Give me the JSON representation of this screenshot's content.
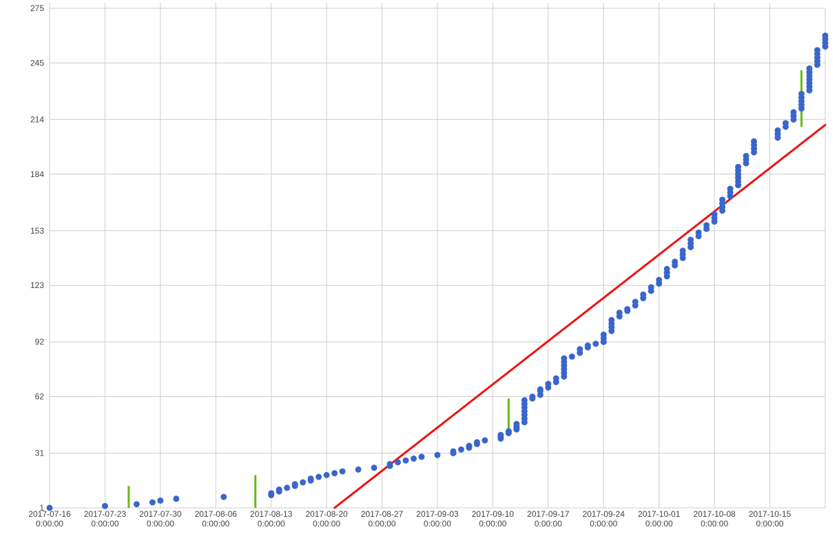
{
  "chart_data": {
    "type": "scatter",
    "title": "",
    "xlabel": "",
    "ylabel": "",
    "grid": true,
    "legend": "none",
    "xlim": [
      "2017-07-16",
      "2017-10-22"
    ],
    "ylim": [
      1,
      275
    ],
    "x_ticks": [
      {
        "date": "2017-07-16",
        "time": "0:00:00"
      },
      {
        "date": "2017-07-23",
        "time": "0:00:00"
      },
      {
        "date": "2017-07-30",
        "time": "0:00:00"
      },
      {
        "date": "2017-08-06",
        "time": "0:00:00"
      },
      {
        "date": "2017-08-13",
        "time": "0:00:00"
      },
      {
        "date": "2017-08-20",
        "time": "0:00:00"
      },
      {
        "date": "2017-08-27",
        "time": "0:00:00"
      },
      {
        "date": "2017-09-03",
        "time": "0:00:00"
      },
      {
        "date": "2017-09-10",
        "time": "0:00:00"
      },
      {
        "date": "2017-09-17",
        "time": "0:00:00"
      },
      {
        "date": "2017-09-24",
        "time": "0:00:00"
      },
      {
        "date": "2017-10-01",
        "time": "0:00:00"
      },
      {
        "date": "2017-10-08",
        "time": "0:00:00"
      },
      {
        "date": "2017-10-15",
        "time": "0:00:00"
      }
    ],
    "y_ticks": [
      1,
      31,
      62,
      92,
      123,
      153,
      184,
      214,
      245,
      275
    ],
    "colors": {
      "points": "#3a66cc",
      "trend": "#ee1111",
      "markers": "#66bb11",
      "grid": "#cccccc"
    },
    "series": [
      {
        "kind": "points",
        "points": [
          [
            "2017-07-16",
            1
          ],
          [
            "2017-07-23",
            2
          ],
          [
            "2017-07-27",
            3
          ],
          [
            "2017-07-29",
            4
          ],
          [
            "2017-07-30",
            5
          ],
          [
            "2017-08-01",
            6
          ],
          [
            "2017-08-07",
            7
          ],
          [
            "2017-08-13",
            8
          ],
          [
            "2017-08-13",
            9
          ],
          [
            "2017-08-14",
            10
          ],
          [
            "2017-08-14",
            11
          ],
          [
            "2017-08-15",
            12
          ],
          [
            "2017-08-16",
            13
          ],
          [
            "2017-08-16",
            14
          ],
          [
            "2017-08-17",
            15
          ],
          [
            "2017-08-18",
            16
          ],
          [
            "2017-08-18",
            17
          ],
          [
            "2017-08-19",
            18
          ],
          [
            "2017-08-20",
            19
          ],
          [
            "2017-08-21",
            20
          ],
          [
            "2017-08-22",
            21
          ],
          [
            "2017-08-24",
            22
          ],
          [
            "2017-08-26",
            23
          ],
          [
            "2017-08-28",
            24
          ],
          [
            "2017-08-28",
            25
          ],
          [
            "2017-08-29",
            26
          ],
          [
            "2017-08-30",
            27
          ],
          [
            "2017-08-31",
            28
          ],
          [
            "2017-09-01",
            29
          ],
          [
            "2017-09-03",
            30
          ],
          [
            "2017-09-05",
            31
          ],
          [
            "2017-09-05",
            32
          ],
          [
            "2017-09-06",
            33
          ],
          [
            "2017-09-07",
            34
          ],
          [
            "2017-09-07",
            35
          ],
          [
            "2017-09-08",
            36
          ],
          [
            "2017-09-08",
            37
          ],
          [
            "2017-09-09",
            38
          ],
          [
            "2017-09-11",
            39
          ],
          [
            "2017-09-11",
            40
          ],
          [
            "2017-09-11",
            41
          ],
          [
            "2017-09-12",
            42
          ],
          [
            "2017-09-12",
            43
          ],
          [
            "2017-09-13",
            44
          ],
          [
            "2017-09-13",
            45
          ],
          [
            "2017-09-13",
            46
          ],
          [
            "2017-09-13",
            47
          ],
          [
            "2017-09-14",
            48
          ],
          [
            "2017-09-14",
            50
          ],
          [
            "2017-09-14",
            52
          ],
          [
            "2017-09-14",
            54
          ],
          [
            "2017-09-14",
            56
          ],
          [
            "2017-09-14",
            58
          ],
          [
            "2017-09-14",
            60
          ],
          [
            "2017-09-15",
            61
          ],
          [
            "2017-09-15",
            62
          ],
          [
            "2017-09-16",
            63
          ],
          [
            "2017-09-16",
            65
          ],
          [
            "2017-09-16",
            66
          ],
          [
            "2017-09-17",
            67
          ],
          [
            "2017-09-17",
            69
          ],
          [
            "2017-09-18",
            70
          ],
          [
            "2017-09-18",
            72
          ],
          [
            "2017-09-19",
            73
          ],
          [
            "2017-09-19",
            75
          ],
          [
            "2017-09-19",
            77
          ],
          [
            "2017-09-19",
            79
          ],
          [
            "2017-09-19",
            81
          ],
          [
            "2017-09-19",
            83
          ],
          [
            "2017-09-20",
            84
          ],
          [
            "2017-09-21",
            86
          ],
          [
            "2017-09-21",
            88
          ],
          [
            "2017-09-22",
            89
          ],
          [
            "2017-09-22",
            90
          ],
          [
            "2017-09-23",
            91
          ],
          [
            "2017-09-24",
            92
          ],
          [
            "2017-09-24",
            94
          ],
          [
            "2017-09-24",
            96
          ],
          [
            "2017-09-25",
            98
          ],
          [
            "2017-09-25",
            100
          ],
          [
            "2017-09-25",
            102
          ],
          [
            "2017-09-25",
            104
          ],
          [
            "2017-09-26",
            106
          ],
          [
            "2017-09-26",
            108
          ],
          [
            "2017-09-27",
            109
          ],
          [
            "2017-09-27",
            110
          ],
          [
            "2017-09-28",
            112
          ],
          [
            "2017-09-28",
            114
          ],
          [
            "2017-09-29",
            116
          ],
          [
            "2017-09-29",
            118
          ],
          [
            "2017-09-30",
            120
          ],
          [
            "2017-09-30",
            122
          ],
          [
            "2017-10-01",
            124
          ],
          [
            "2017-10-01",
            126
          ],
          [
            "2017-10-02",
            128
          ],
          [
            "2017-10-02",
            130
          ],
          [
            "2017-10-02",
            132
          ],
          [
            "2017-10-03",
            134
          ],
          [
            "2017-10-03",
            136
          ],
          [
            "2017-10-04",
            138
          ],
          [
            "2017-10-04",
            140
          ],
          [
            "2017-10-04",
            142
          ],
          [
            "2017-10-05",
            144
          ],
          [
            "2017-10-05",
            146
          ],
          [
            "2017-10-05",
            148
          ],
          [
            "2017-10-06",
            150
          ],
          [
            "2017-10-06",
            152
          ],
          [
            "2017-10-07",
            154
          ],
          [
            "2017-10-07",
            156
          ],
          [
            "2017-10-08",
            158
          ],
          [
            "2017-10-08",
            160
          ],
          [
            "2017-10-08",
            162
          ],
          [
            "2017-10-09",
            164
          ],
          [
            "2017-10-09",
            166
          ],
          [
            "2017-10-09",
            168
          ],
          [
            "2017-10-09",
            170
          ],
          [
            "2017-10-10",
            172
          ],
          [
            "2017-10-10",
            174
          ],
          [
            "2017-10-10",
            176
          ],
          [
            "2017-10-11",
            178
          ],
          [
            "2017-10-11",
            180
          ],
          [
            "2017-10-11",
            182
          ],
          [
            "2017-10-11",
            184
          ],
          [
            "2017-10-11",
            186
          ],
          [
            "2017-10-11",
            188
          ],
          [
            "2017-10-12",
            190
          ],
          [
            "2017-10-12",
            192
          ],
          [
            "2017-10-12",
            194
          ],
          [
            "2017-10-13",
            196
          ],
          [
            "2017-10-13",
            198
          ],
          [
            "2017-10-13",
            200
          ],
          [
            "2017-10-13",
            202
          ],
          [
            "2017-10-16",
            204
          ],
          [
            "2017-10-16",
            206
          ],
          [
            "2017-10-16",
            208
          ],
          [
            "2017-10-17",
            210
          ],
          [
            "2017-10-17",
            212
          ],
          [
            "2017-10-18",
            214
          ],
          [
            "2017-10-18",
            216
          ],
          [
            "2017-10-18",
            218
          ],
          [
            "2017-10-19",
            220
          ],
          [
            "2017-10-19",
            222
          ],
          [
            "2017-10-19",
            224
          ],
          [
            "2017-10-19",
            226
          ],
          [
            "2017-10-19",
            228
          ],
          [
            "2017-10-20",
            230
          ],
          [
            "2017-10-20",
            232
          ],
          [
            "2017-10-20",
            234
          ],
          [
            "2017-10-20",
            236
          ],
          [
            "2017-10-20",
            238
          ],
          [
            "2017-10-20",
            240
          ],
          [
            "2017-10-20",
            242
          ],
          [
            "2017-10-21",
            244
          ],
          [
            "2017-10-21",
            246
          ],
          [
            "2017-10-21",
            248
          ],
          [
            "2017-10-21",
            250
          ],
          [
            "2017-10-21",
            252
          ],
          [
            "2017-10-22",
            254
          ],
          [
            "2017-10-22",
            256
          ],
          [
            "2017-10-22",
            258
          ],
          [
            "2017-10-22",
            260
          ]
        ]
      },
      {
        "kind": "trendline",
        "points": [
          [
            "2017-08-21",
            1
          ],
          [
            "2017-10-22",
            211
          ]
        ]
      },
      {
        "kind": "markers",
        "segments": [
          [
            "2017-07-26",
            1,
            13
          ],
          [
            "2017-08-11",
            1,
            19
          ],
          [
            "2017-09-12",
            41,
            61
          ],
          [
            "2017-10-19",
            210,
            241
          ]
        ]
      }
    ]
  }
}
